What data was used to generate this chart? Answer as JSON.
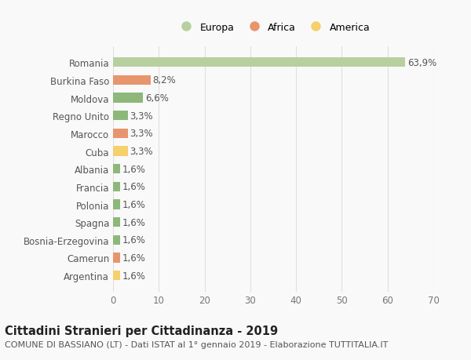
{
  "categories": [
    "Argentina",
    "Camerun",
    "Bosnia-Erzegovina",
    "Spagna",
    "Polonia",
    "Francia",
    "Albania",
    "Cuba",
    "Marocco",
    "Regno Unito",
    "Moldova",
    "Burkina Faso",
    "Romania"
  ],
  "values": [
    1.6,
    1.6,
    1.6,
    1.6,
    1.6,
    1.6,
    1.6,
    3.3,
    3.3,
    3.3,
    6.6,
    8.2,
    63.9
  ],
  "labels": [
    "1,6%",
    "1,6%",
    "1,6%",
    "1,6%",
    "1,6%",
    "1,6%",
    "1,6%",
    "3,3%",
    "3,3%",
    "3,3%",
    "6,6%",
    "8,2%",
    "63,9%"
  ],
  "colors": [
    "#f5d06b",
    "#e8956d",
    "#8db87a",
    "#8db87a",
    "#8db87a",
    "#8db87a",
    "#8db87a",
    "#f5d06b",
    "#e8956d",
    "#8db87a",
    "#8db87a",
    "#e8956d",
    "#b8cfa0"
  ],
  "legend_labels": [
    "Europa",
    "Africa",
    "America"
  ],
  "legend_colors": [
    "#b8cfa0",
    "#e8956d",
    "#f5d06b"
  ],
  "title_bold": "Cittadini Stranieri per Cittadinanza - 2019",
  "subtitle": "COMUNE DI BASSIANO (LT) - Dati ISTAT al 1° gennaio 2019 - Elaborazione TUTTITALIA.IT",
  "xlim": [
    0,
    70
  ],
  "xticks": [
    0,
    10,
    20,
    30,
    40,
    50,
    60,
    70
  ],
  "background_color": "#f9f9f9",
  "grid_color": "#e0e0e0",
  "bar_height": 0.55,
  "label_fontsize": 8.5,
  "tick_fontsize": 8.5,
  "title_fontsize": 10.5,
  "subtitle_fontsize": 8,
  "legend_fontsize": 9
}
